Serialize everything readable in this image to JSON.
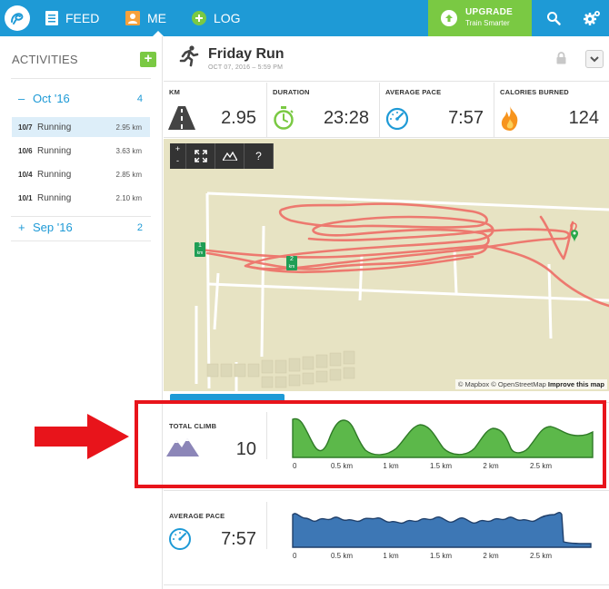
{
  "nav": {
    "feed": "FEED",
    "me": "ME",
    "log": "LOG",
    "upgrade_title": "UPGRADE",
    "upgrade_sub": "Train Smarter"
  },
  "sidebar": {
    "heading": "ACTIVITIES",
    "add": "+",
    "months": [
      {
        "sign": "–",
        "label": "Oct '16",
        "count": "4"
      },
      {
        "sign": "+",
        "label": "Sep '16",
        "count": "2"
      }
    ],
    "activities": [
      {
        "date": "10/7",
        "type": "Running",
        "distance": "2.95 km"
      },
      {
        "date": "10/6",
        "type": "Running",
        "distance": "3.63 km"
      },
      {
        "date": "10/4",
        "type": "Running",
        "distance": "2.85 km"
      },
      {
        "date": "10/1",
        "type": "Running",
        "distance": "2.10 km"
      }
    ]
  },
  "activity": {
    "title": "Friday Run",
    "date": "OCT 07, 2016 – 5:59 PM"
  },
  "stats": [
    {
      "label": "KM",
      "value": "2.95",
      "icon": "road-icon"
    },
    {
      "label": "DURATION",
      "value": "23:28",
      "icon": "stopwatch-icon"
    },
    {
      "label": "AVERAGE PACE",
      "value": "7:57",
      "icon": "speedometer-icon"
    },
    {
      "label": "CALORIES BURNED",
      "value": "124",
      "icon": "flame-icon"
    }
  ],
  "map": {
    "zoom_in": "+",
    "zoom_out": "-",
    "help": "?",
    "markers": [
      "1",
      "2"
    ],
    "marker_unit": "km",
    "attribution": "© Mapbox © OpenStreetMap",
    "improve": "Improve this map"
  },
  "profiles": {
    "climb": {
      "label": "TOTAL CLIMB",
      "value": "10",
      "icon": "mountain-icon",
      "color": "#5cb84a"
    },
    "pace": {
      "label": "AVERAGE PACE",
      "value": "7:57",
      "icon": "speedometer-icon",
      "color": "#3d77b5"
    },
    "ticks": [
      "0",
      "0.5 km",
      "1 km",
      "1.5 km",
      "2 km",
      "2.5 km"
    ]
  },
  "colors": {
    "nav": "#1e9ad6",
    "upgrade": "#7ac943",
    "route": "#ee6e66",
    "highlight": "#e8141b"
  }
}
